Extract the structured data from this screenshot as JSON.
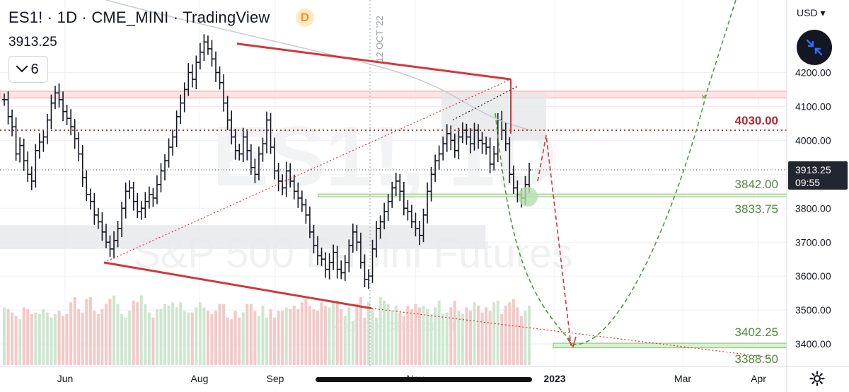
{
  "header": {
    "title": "ES1! · 1D · CME_MINI · TradingView",
    "badge": "D",
    "last_price": "3913.25",
    "collapse_count": "6"
  },
  "axis": {
    "currency": "USD",
    "price_badge": {
      "value": "3913.25",
      "countdown": "09:55"
    },
    "price_ticks": [
      "4200.00",
      "4100.00",
      "4000.00",
      "3800.00",
      "3700.00",
      "3600.00",
      "3500.00",
      "3400.00"
    ],
    "time_labels": [
      "Jun",
      "Aug",
      "Sep",
      "Nov",
      "2023",
      "Mar",
      "Apr"
    ]
  },
  "watermark": {
    "symbol": "ES1!, 1D",
    "description": "S&P 500 E-mini Futures",
    "source": "4xForecast.com"
  },
  "vertical_marker": "12 OCT '22",
  "levels": [
    {
      "label": "4030.00",
      "color": "#b22833"
    },
    {
      "label": "3842.00",
      "color": "#4f8a3c"
    },
    {
      "label": "3833.75",
      "color": "#4f8a3c"
    },
    {
      "label": "3402.25",
      "color": "#4f8a3c"
    },
    {
      "label": "3388.50",
      "color": "#4f8a3c"
    }
  ],
  "chart_data": {
    "type": "bar",
    "symbol": "ES1!",
    "interval": "1D",
    "ylim": [
      3330,
      4310
    ],
    "price_ticks": [
      4200,
      4100,
      4000,
      3900,
      3800,
      3700,
      3600,
      3500,
      3400
    ],
    "horizontal_levels": [
      {
        "price": 4030,
        "label": "4030.00",
        "style": "dotted",
        "color": "#b22833"
      },
      {
        "price": 3842,
        "label": "3842.00",
        "style": "dotted",
        "color": "#4f8a3c"
      },
      {
        "price": 3833.75,
        "label": "3833.75",
        "style": "zone",
        "color": "#4f8a3c"
      },
      {
        "price": 3402.25,
        "label": "3402.25",
        "style": "zone",
        "color": "#4f8a3c"
      },
      {
        "price": 3388.5,
        "label": "3388.50",
        "style": "zone",
        "color": "#4f8a3c"
      },
      {
        "price": 3913.25,
        "label": "3913.25",
        "style": "dotted",
        "color": "#131722"
      }
    ],
    "resistance_zone": [
      4125,
      4145
    ],
    "support_zone": [
      3680,
      3750
    ],
    "ohlc_closes": [
      4120,
      4070,
      4040,
      3960,
      3985,
      3940,
      3900,
      3880,
      3970,
      3995,
      4010,
      4060,
      4110,
      4140,
      4120,
      4085,
      4065,
      4040,
      4005,
      3960,
      3890,
      3840,
      3820,
      3780,
      3760,
      3730,
      3700,
      3680,
      3705,
      3740,
      3800,
      3850,
      3860,
      3820,
      3790,
      3800,
      3820,
      3840,
      3830,
      3870,
      3910,
      3940,
      3980,
      4010,
      4070,
      4110,
      4150,
      4200,
      4180,
      4230,
      4260,
      4290,
      4270,
      4240,
      4200,
      4170,
      4110,
      4060,
      4010,
      3970,
      3960,
      4010,
      3970,
      3920,
      3900,
      3960,
      3990,
      4060,
      3980,
      3910,
      3880,
      3860,
      3910,
      3880,
      3850,
      3830,
      3810,
      3780,
      3730,
      3690,
      3660,
      3650,
      3620,
      3640,
      3670,
      3620,
      3610,
      3640,
      3690,
      3730,
      3700,
      3640,
      3590,
      3600,
      3680,
      3740,
      3760,
      3790,
      3820,
      3860,
      3880,
      3850,
      3800,
      3790,
      3760,
      3740,
      3720,
      3780,
      3850,
      3900,
      3940,
      3960,
      3990,
      4020,
      4000,
      3970,
      4010,
      4030,
      4010,
      3990,
      4030,
      4000,
      3990,
      3980,
      3930,
      3960,
      4060,
      4030,
      3990,
      3900,
      3860,
      3840,
      3830,
      3870,
      3913
    ],
    "volume": [
      34,
      33,
      31,
      29,
      27,
      34,
      33,
      30,
      31,
      30,
      33,
      31,
      28,
      30,
      32,
      29,
      30,
      37,
      40,
      33,
      31,
      39,
      40,
      32,
      30,
      33,
      36,
      39,
      41,
      36,
      30,
      28,
      32,
      38,
      37,
      41,
      36,
      31,
      28,
      33,
      33,
      36,
      35,
      37,
      34,
      37,
      32,
      31,
      31,
      34,
      37,
      34,
      32,
      30,
      32,
      36,
      36,
      28,
      27,
      32,
      28,
      31,
      36,
      36,
      32,
      29,
      35,
      28,
      33,
      28,
      32,
      32,
      34,
      33,
      35,
      33,
      37,
      39,
      35,
      33,
      32,
      37,
      35,
      34,
      38,
      38,
      33,
      29,
      34,
      26,
      36,
      40,
      28,
      37,
      34,
      28,
      40,
      38,
      36,
      32,
      35,
      31,
      29,
      35,
      33,
      36,
      34,
      35,
      33,
      30,
      34,
      38,
      30,
      31,
      34,
      38,
      32,
      30,
      34,
      32,
      37,
      35,
      31,
      34,
      32,
      37,
      38,
      30,
      35,
      37,
      39,
      34,
      29,
      32,
      35
    ],
    "annotations": [
      {
        "type": "trendline",
        "color": "#d0383a",
        "from_price": 4285,
        "to_price": 4180
      },
      {
        "type": "trendline",
        "color": "#d0383a",
        "from_price": 3640,
        "to_price": 3505
      },
      {
        "type": "projection",
        "color": "#d0383a",
        "dashed": true
      },
      {
        "type": "projection",
        "color": "#4f9a3c",
        "dashed": true
      },
      {
        "type": "marker",
        "price": 3835,
        "color": "#4f9a3c"
      }
    ]
  }
}
